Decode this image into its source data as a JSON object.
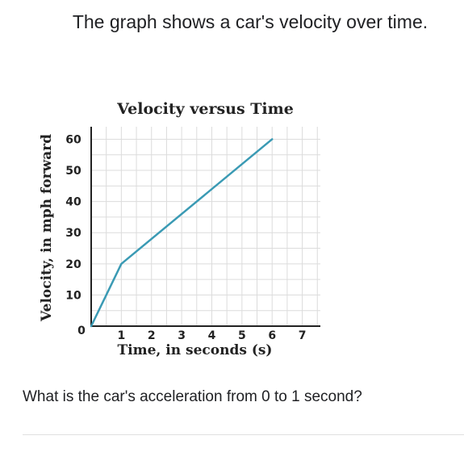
{
  "prompt_text": "The graph shows a car's velocity over time.",
  "question_text": "What is the car's acceleration from 0 to 1 second?",
  "chart_data": {
    "type": "line",
    "title": "Velocity versus Time",
    "xlabel": "Time, in seconds (s)",
    "ylabel": "Velocity, in mph forward",
    "xlim": [
      0,
      7.6
    ],
    "ylim": [
      0,
      64
    ],
    "x_ticks": [
      1,
      2,
      3,
      4,
      5,
      6,
      7
    ],
    "y_ticks": [
      10,
      20,
      30,
      40,
      50,
      60
    ],
    "origin_label": "0",
    "grid": true,
    "series": [
      {
        "x": [
          0,
          1,
          6
        ],
        "y": [
          0,
          20,
          60
        ],
        "color": "#3a9ab4"
      }
    ]
  }
}
